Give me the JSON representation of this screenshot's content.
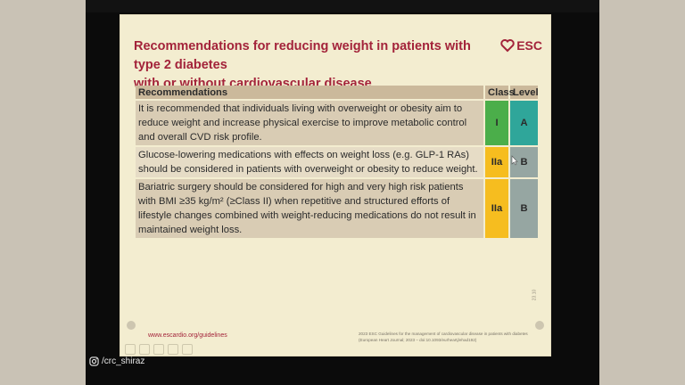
{
  "slide": {
    "title_line1": "Recommendations for reducing weight in patients with type 2 diabetes",
    "title_line2": "with or without cardiovascular disease",
    "logo_text": "ESC",
    "table": {
      "headers": {
        "recommendations": "Recommendations",
        "class": "Class",
        "level": "Level"
      },
      "rows": [
        {
          "text": "It is recommended that individuals living with overweight or obesity aim to reduce weight and increase physical exercise to improve metabolic control and overall CVD risk profile.",
          "class": "I",
          "level": "A"
        },
        {
          "text": "Glucose-lowering medications with effects on weight loss (e.g. GLP-1 RAs) should be considered in patients with overweight or obesity to reduce weight.",
          "class": "IIa",
          "level": "B"
        },
        {
          "text": "Bariatric surgery should be considered for high and very high risk patients with BMI ≥35 kg/m² (≥Class II) when repetitive and structured efforts of lifestyle changes combined with weight-reducing medications do not result in maintained weight loss.",
          "class": "IIa",
          "level": "B"
        }
      ]
    },
    "footer_link": "www.escardio.org/guidelines",
    "footer_cite_line1": "2023 ESC Guidelines for the management of cardiovascular disease in patients with diabetes",
    "footer_cite_line2": "(European Heart Journal; 2023 – doi:10.1093/eurheartj/ehad192)",
    "slide_number": "23.10"
  },
  "colors": {
    "brand": "#a3233a",
    "class_I": "#4bae4a",
    "level_A": "#2fa69a",
    "class_IIa": "#f6bd1f",
    "level_B": "#96a6a2"
  },
  "watermark": {
    "text": "/crc_shiraz",
    "icon": "instagram-icon"
  }
}
